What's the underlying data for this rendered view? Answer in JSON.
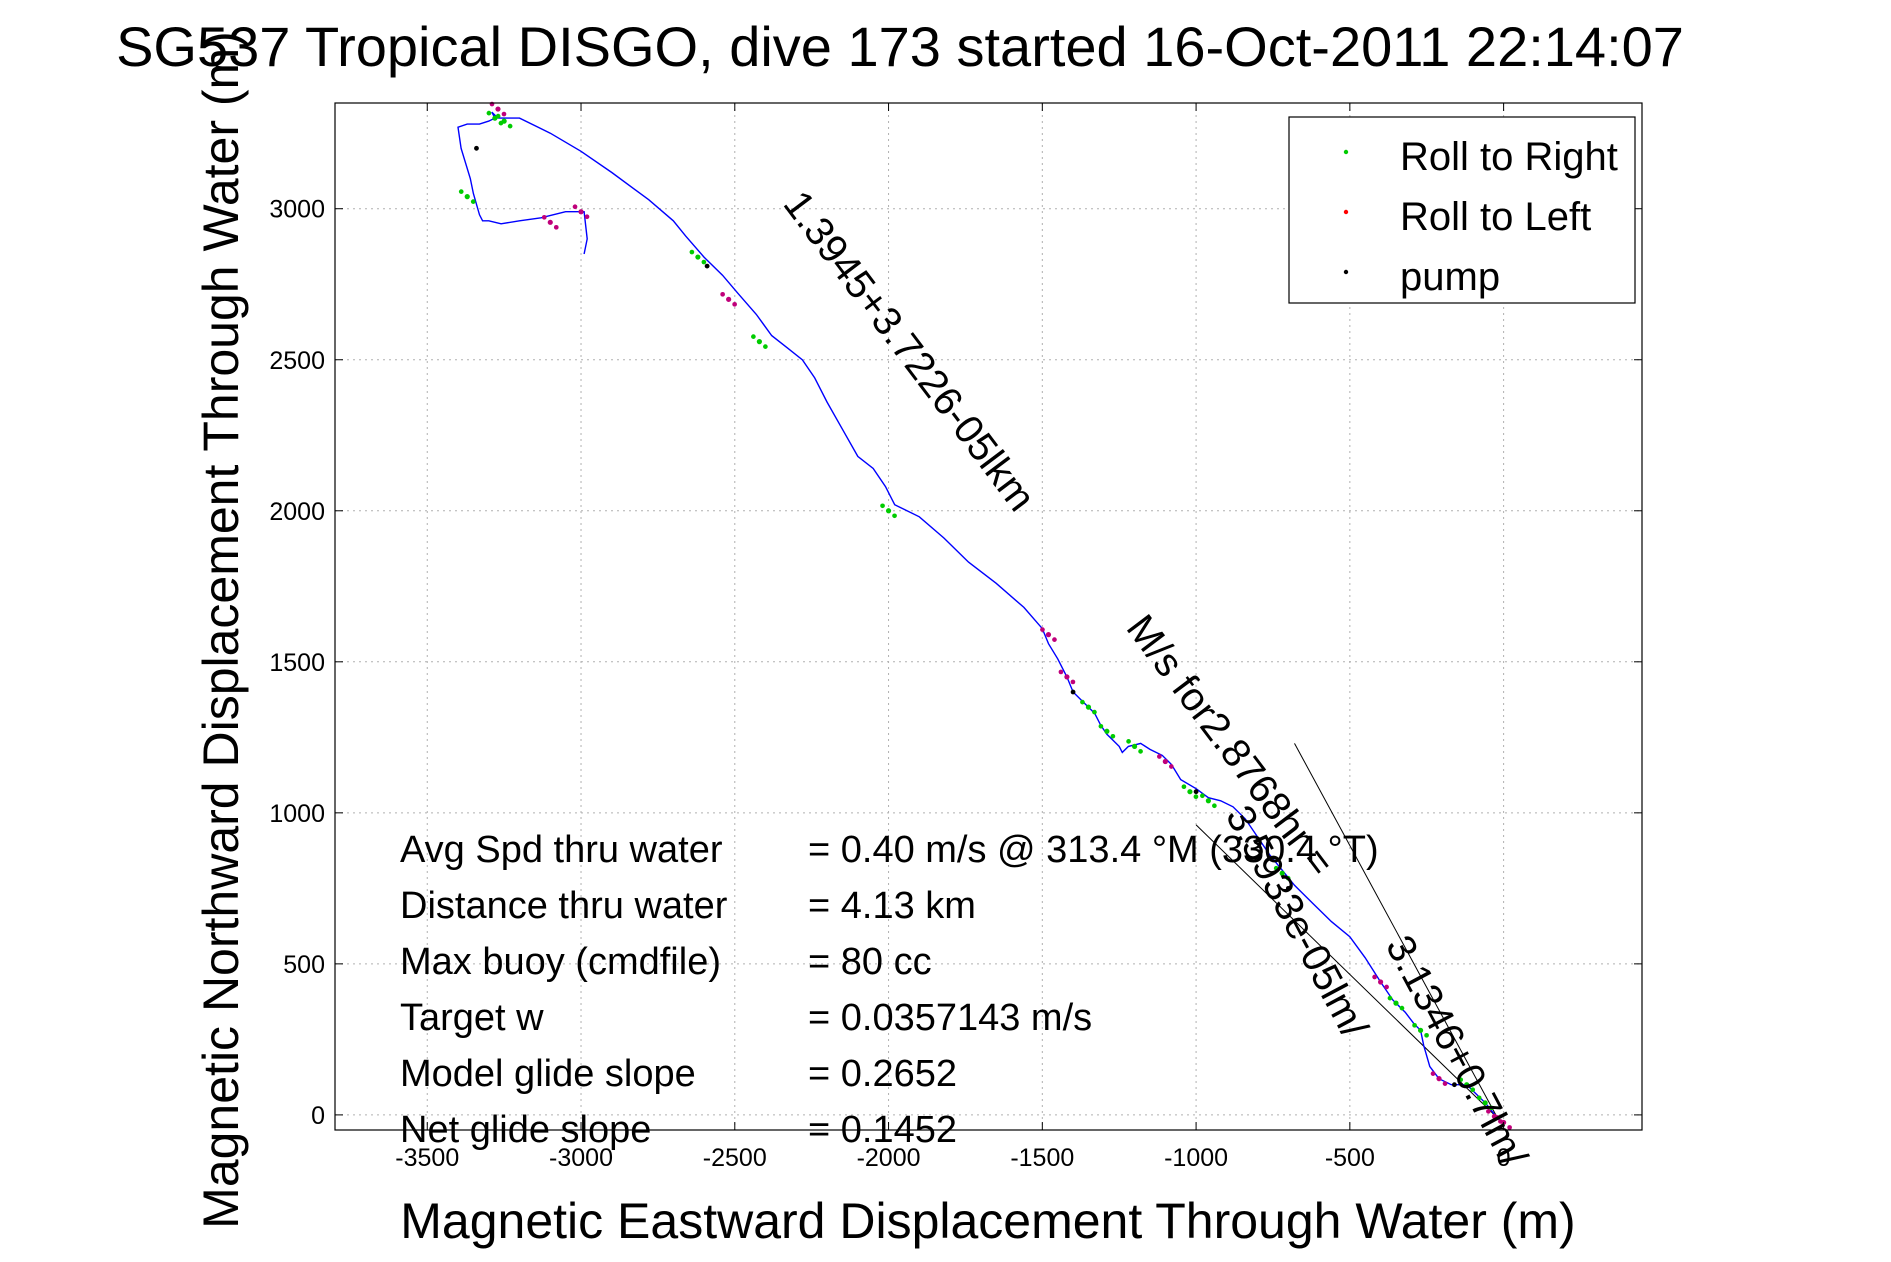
{
  "chart_data": {
    "type": "line",
    "title": "SG537 Tropical DISGO, dive 173 started 16-Oct-2011 22:14:07",
    "xlabel": "Magnetic Eastward Displacement Through Water (m)",
    "ylabel": "Magnetic Northward Displacement Through Water (m)",
    "xlim": [
      -3800,
      450
    ],
    "ylim": [
      -50,
      3350
    ],
    "xticks": [
      -3500,
      -3000,
      -2500,
      -2000,
      -1500,
      -1000,
      -500,
      0
    ],
    "yticks": [
      0,
      500,
      1000,
      1500,
      2000,
      2500,
      3000
    ],
    "grid": true,
    "legend": {
      "placement": "top-right",
      "entries": [
        {
          "label": "Roll to Right",
          "color": "#00cc00"
        },
        {
          "label": "Roll to Left",
          "color": "#ff0000"
        },
        {
          "label": "pump",
          "color": "#000000"
        }
      ]
    },
    "track": {
      "name": "",
      "color": "#0000ff",
      "x": [
        0,
        -20,
        -60,
        -120,
        -170,
        -210,
        -240,
        -260,
        -270,
        -290,
        -320,
        -360,
        -400,
        -450,
        -500,
        -560,
        -620,
        -680,
        -720,
        -760,
        -800,
        -840,
        -880,
        -920,
        -960,
        -1000,
        -1050,
        -1080,
        -1110,
        -1130,
        -1150,
        -1180,
        -1220,
        -1240,
        -1250,
        -1270,
        -1290,
        -1310,
        -1330,
        -1350,
        -1370,
        -1400,
        -1420,
        -1450,
        -1480,
        -1500,
        -1560,
        -1650,
        -1740,
        -1820,
        -1900,
        -1980,
        -2010,
        -2050,
        -2100,
        -2150,
        -2200,
        -2240,
        -2280,
        -2330,
        -2380,
        -2430,
        -2490,
        -2540,
        -2600,
        -2660,
        -2700,
        -2780,
        -2900,
        -3000,
        -3100,
        -3200,
        -3270,
        -3290,
        -3280,
        -3300,
        -3330,
        -3370,
        -3400,
        -3390,
        -3360,
        -3350,
        -3330,
        -3320,
        -3300,
        -3260,
        -3200,
        -3130,
        -3050,
        -2990,
        -2980,
        -2990
      ],
      "y": [
        -30,
        -10,
        40,
        100,
        100,
        120,
        160,
        230,
        280,
        300,
        340,
        380,
        440,
        520,
        590,
        640,
        700,
        760,
        810,
        860,
        920,
        980,
        1020,
        1040,
        1050,
        1080,
        1110,
        1160,
        1190,
        1200,
        1210,
        1230,
        1220,
        1200,
        1220,
        1240,
        1260,
        1290,
        1330,
        1350,
        1370,
        1400,
        1450,
        1510,
        1560,
        1610,
        1680,
        1760,
        1830,
        1910,
        1980,
        2020,
        2080,
        2140,
        2180,
        2270,
        2360,
        2440,
        2500,
        2540,
        2580,
        2650,
        2720,
        2780,
        2840,
        2910,
        2960,
        3030,
        3120,
        3190,
        3250,
        3300,
        3300,
        3320,
        3300,
        3290,
        3280,
        3280,
        3270,
        3200,
        3100,
        3050,
        2980,
        2960,
        2960,
        2950,
        2960,
        2970,
        2990,
        2990,
        2900,
        2850
      ]
    },
    "roll_right": {
      "name": "Roll to Right",
      "color": "#00cc00",
      "x": [
        -60,
        -120,
        -270,
        -350,
        -720,
        -960,
        -1020,
        -1200,
        -1290,
        -1350,
        -2000,
        -2420,
        -2620,
        -3280,
        -3370,
        -3250
      ],
      "y": [
        40,
        100,
        280,
        370,
        800,
        1040,
        1070,
        1220,
        1270,
        1350,
        2000,
        2560,
        2840,
        3300,
        3040,
        3290
      ]
    },
    "roll_left": {
      "name": "Roll to Left",
      "color": "#ff0000",
      "x": [
        0,
        -30,
        -210,
        -400,
        -1100,
        -1420,
        -1480,
        -2520,
        -3270,
        -3000,
        -3100
      ],
      "y": [
        -25,
        -5,
        120,
        440,
        1170,
        1450,
        1590,
        2700,
        3330,
        2990,
        2955
      ],
      "color_alt": "#c0007a"
    },
    "pump": {
      "name": "pump",
      "color": "#000000",
      "x": [
        -160,
        -700,
        -1000,
        -1400,
        -2590,
        -3340
      ],
      "y": [
        100,
        750,
        1070,
        1400,
        2810,
        3200
      ]
    },
    "guide_lines": [
      {
        "x": [
          -20,
          -1000
        ],
        "y": [
          -10,
          960
        ]
      },
      {
        "x": [
          -20,
          -680
        ],
        "y": [
          -10,
          1230
        ]
      }
    ],
    "annotations": [
      {
        "text": "1.3945+3.7226-05lkm"
      },
      {
        "text": "M/s for2.8768hr ="
      },
      {
        "text": "3.5933e-05lm/"
      },
      {
        "text": "3.1346+0.7lm/"
      }
    ],
    "stats": [
      {
        "label": "Avg Spd thru water",
        "value": "=  0.40 m/s @ 313.4 °M (330.4 °T)"
      },
      {
        "label": "Distance thru water",
        "value": "=  4.13 km"
      },
      {
        "label": "Max buoy (cmdfile)",
        "value": "= 80 cc"
      },
      {
        "label": "Target w",
        "value": "= 0.0357143 m/s"
      },
      {
        "label": "Model glide slope",
        "value": "= 0.2652"
      },
      {
        "label": "Net glide slope",
        "value": "= 0.1452"
      }
    ]
  }
}
